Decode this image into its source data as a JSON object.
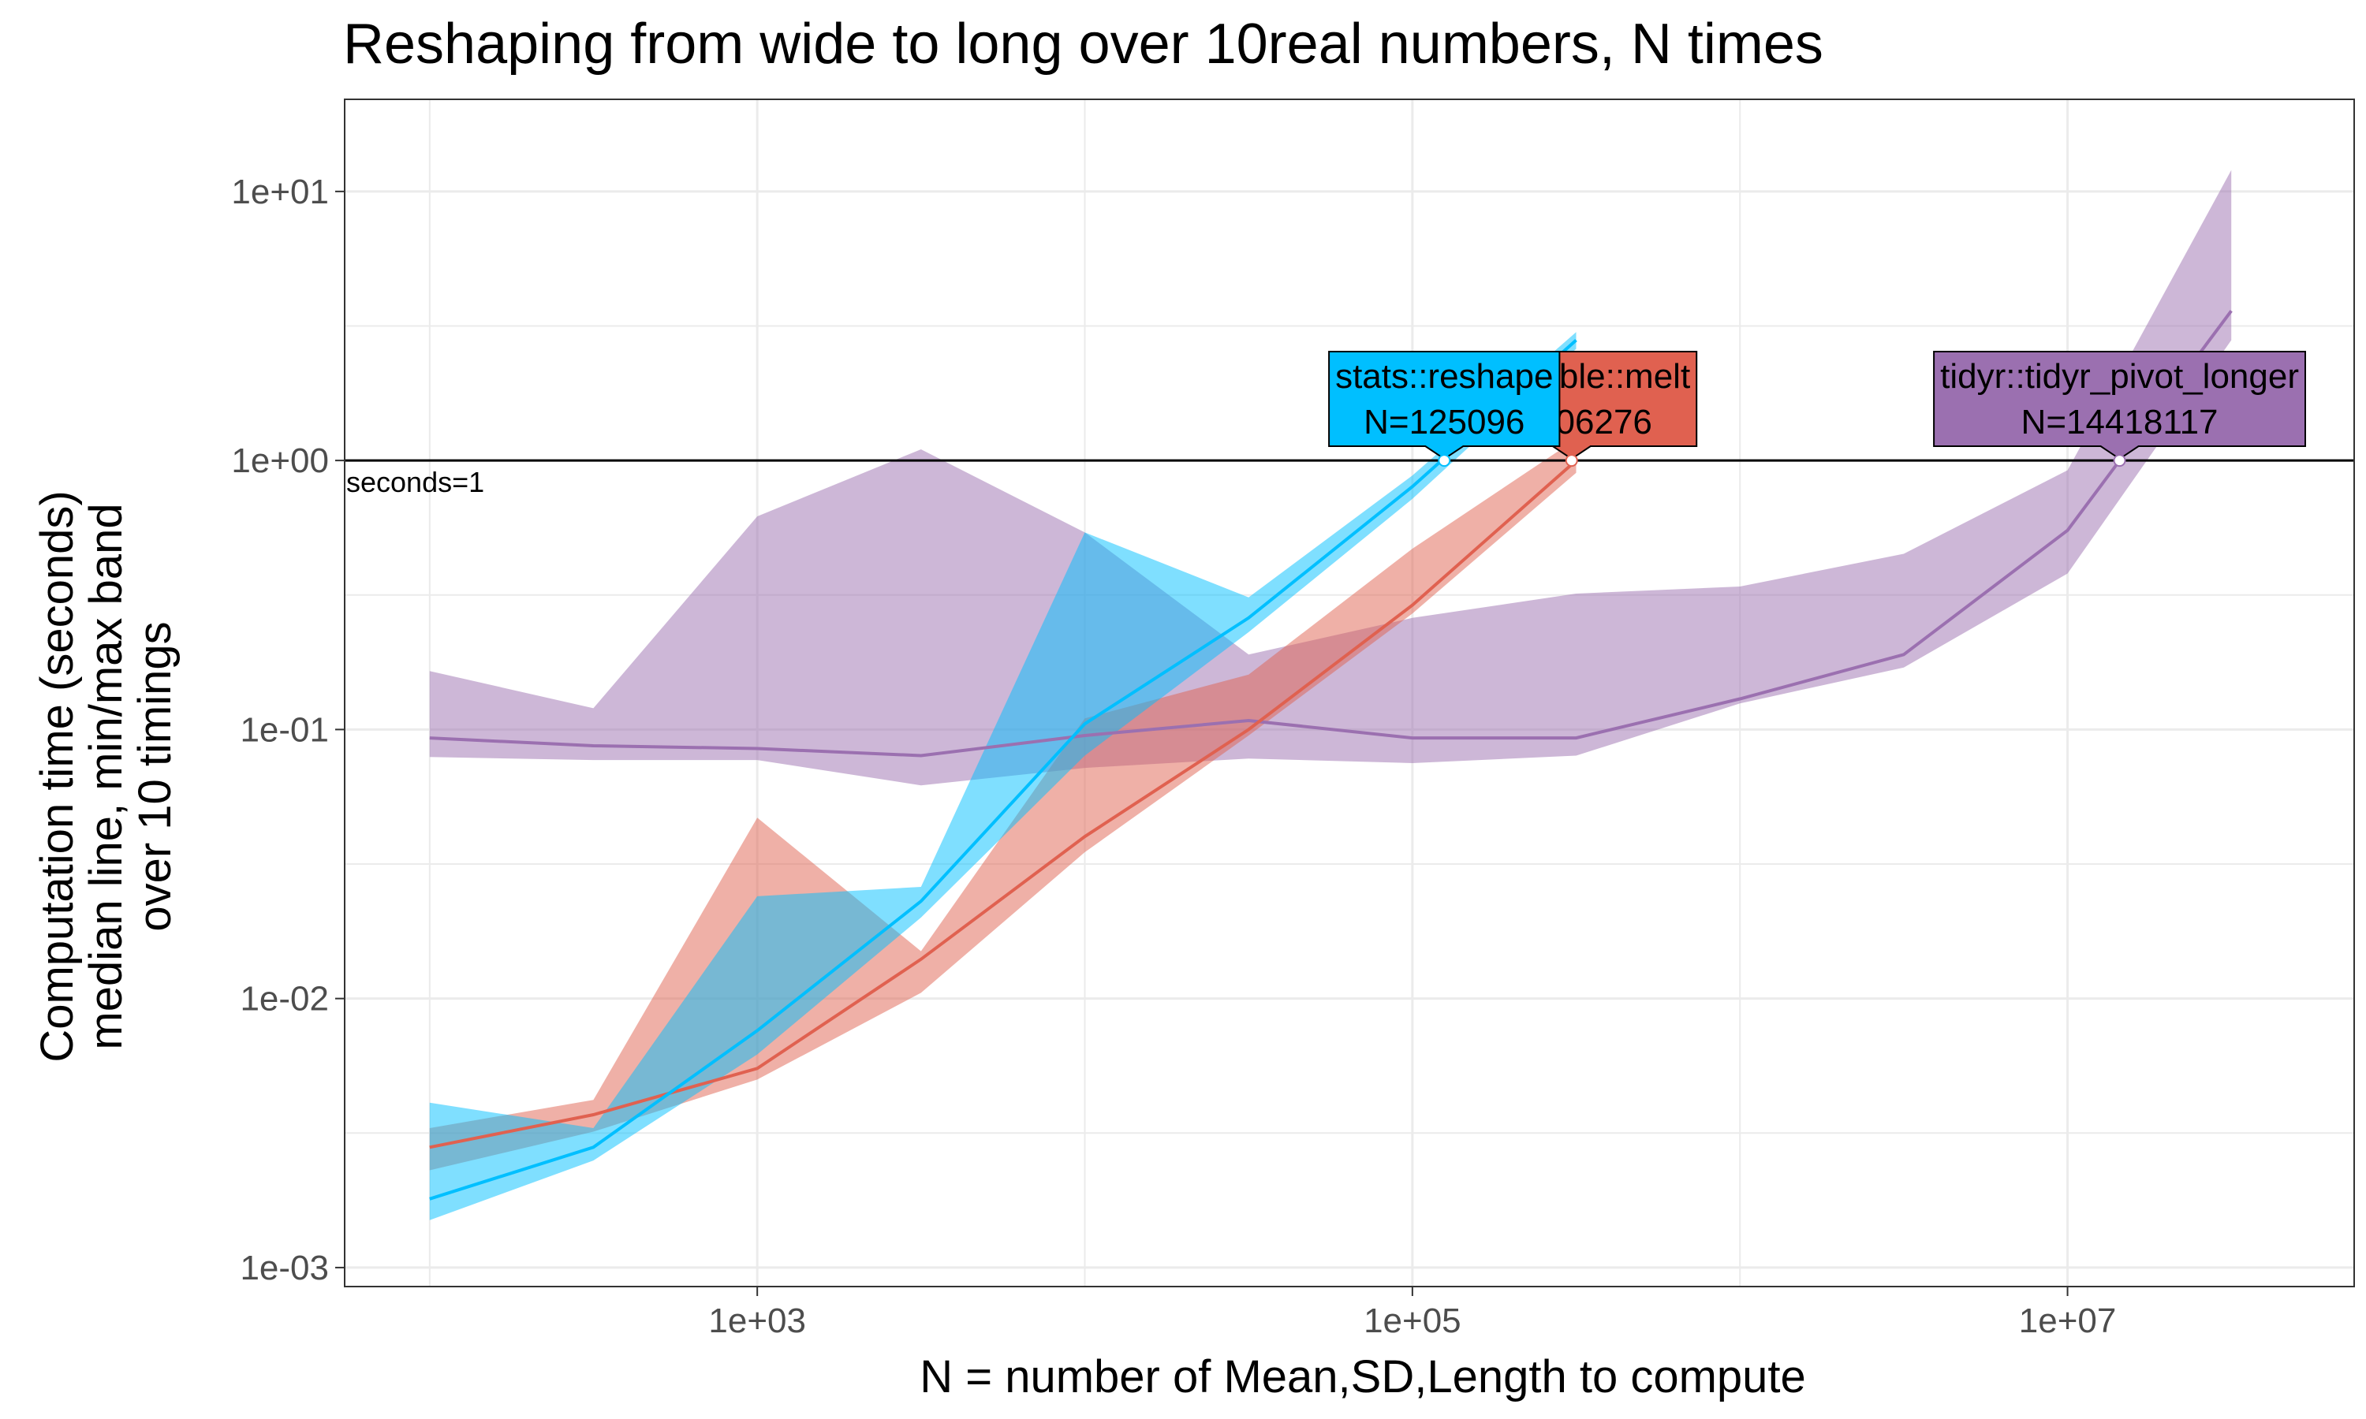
{
  "chart_data": {
    "type": "line",
    "title": "Reshaping from wide to long over 10real numbers, N times",
    "xlabel": "N = number of Mean,SD,Length to compute",
    "ylabel_lines": [
      "Computation time (seconds)",
      "median line, min/max band",
      "over 10 timings"
    ],
    "x_scale": "log10",
    "y_scale": "log10",
    "xlim": [
      55,
      75000000
    ],
    "ylim": [
      0.00085,
      22
    ],
    "x_ticks": [
      {
        "value": 1000,
        "label": "1e+03"
      },
      {
        "value": 100000,
        "label": "1e+05"
      },
      {
        "value": 10000000,
        "label": "1e+07"
      }
    ],
    "y_ticks": [
      {
        "value": 0.001,
        "label": "1e-03"
      },
      {
        "value": 0.01,
        "label": "1e-02"
      },
      {
        "value": 0.1,
        "label": "1e-01"
      },
      {
        "value": 1,
        "label": "1e+00"
      },
      {
        "value": 10,
        "label": "1e+01"
      }
    ],
    "grid": true,
    "reference_line": {
      "y": 1,
      "label": "seconds=1"
    },
    "series": [
      {
        "name": "tidyr::tidyr_pivot_longer",
        "color": "#9B70B0",
        "x": [
          100,
          316,
          1000,
          3162,
          10000,
          31623,
          100000,
          316228,
          1000000,
          3162278,
          10000000,
          31622777
        ],
        "median": [
          0.093,
          0.087,
          0.085,
          0.08,
          0.095,
          0.108,
          0.093,
          0.093,
          0.13,
          0.19,
          0.55,
          3.6
        ],
        "min": [
          0.079,
          0.077,
          0.077,
          0.062,
          0.072,
          0.078,
          0.075,
          0.08,
          0.125,
          0.17,
          0.38,
          2.8
        ],
        "max": [
          0.165,
          0.12,
          0.62,
          1.1,
          0.54,
          0.19,
          0.26,
          0.32,
          0.34,
          0.45,
          0.92,
          12
        ],
        "callout": {
          "name": "tidyr::tidyr_pivot_longer",
          "n_label": "N=14418117",
          "x": 14418117
        }
      },
      {
        "name": "data.table::melt",
        "color": "#E06150",
        "x": [
          100,
          316,
          1000,
          3162,
          10000,
          31623,
          100000,
          316228
        ],
        "median": [
          0.0028,
          0.0037,
          0.0055,
          0.014,
          0.04,
          0.1,
          0.29,
          1.0
        ],
        "min": [
          0.0023,
          0.0032,
          0.005,
          0.0105,
          0.035,
          0.095,
          0.27,
          0.9
        ],
        "max": [
          0.0033,
          0.0042,
          0.047,
          0.015,
          0.11,
          0.16,
          0.47,
          1.2
        ],
        "callout": {
          "name": "data.table::melt",
          "n_label": "N=306276",
          "x": 306276
        }
      },
      {
        "name": "stats::reshape",
        "color": "#00BFFF",
        "x": [
          100,
          316,
          1000,
          3162,
          10000,
          31623,
          100000,
          316228
        ],
        "median": [
          0.0018,
          0.0028,
          0.0076,
          0.023,
          0.105,
          0.26,
          0.8,
          2.8
        ],
        "min": [
          0.0015,
          0.0025,
          0.0062,
          0.02,
          0.08,
          0.23,
          0.72,
          2.6
        ],
        "max": [
          0.0041,
          0.0033,
          0.024,
          0.026,
          0.54,
          0.31,
          0.88,
          3.0
        ],
        "callout": {
          "name": "stats::reshape",
          "n_label": "N=125096",
          "x": 125096
        }
      }
    ]
  }
}
